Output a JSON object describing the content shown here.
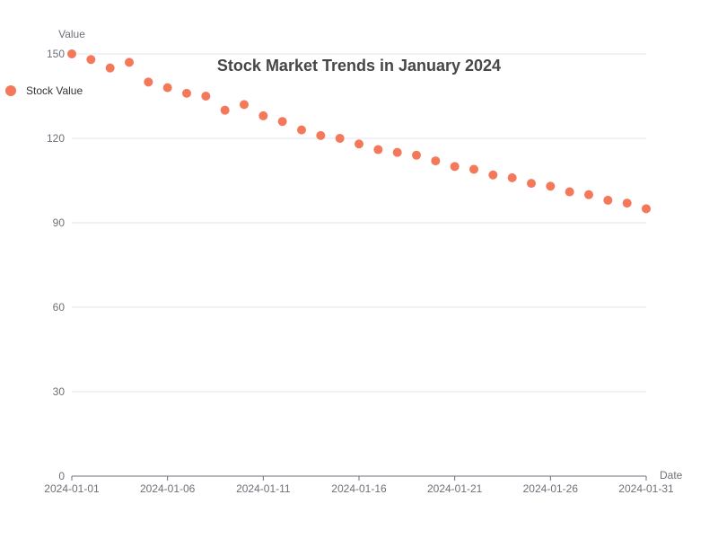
{
  "chart_data": {
    "type": "scatter",
    "title": "Stock Market Trends in January 2024",
    "xlabel": "Date",
    "ylabel": "Value",
    "ylim": [
      0,
      150
    ],
    "y_ticks": [
      0,
      30,
      60,
      90,
      120,
      150
    ],
    "x_tick_labels": [
      "2024-01-01",
      "2024-01-06",
      "2024-01-11",
      "2024-01-16",
      "2024-01-21",
      "2024-01-26",
      "2024-01-31"
    ],
    "xlim": [
      "2024-01-01",
      "2024-01-31"
    ],
    "grid": "horizontal",
    "legend_position": "left",
    "series": [
      {
        "name": "Stock Value",
        "color": "#f4795b",
        "points": [
          {
            "x": "2024-01-01",
            "y": 150
          },
          {
            "x": "2024-01-02",
            "y": 148
          },
          {
            "x": "2024-01-03",
            "y": 145
          },
          {
            "x": "2024-01-04",
            "y": 147
          },
          {
            "x": "2024-01-05",
            "y": 140
          },
          {
            "x": "2024-01-06",
            "y": 138
          },
          {
            "x": "2024-01-07",
            "y": 136
          },
          {
            "x": "2024-01-08",
            "y": 135
          },
          {
            "x": "2024-01-09",
            "y": 130
          },
          {
            "x": "2024-01-10",
            "y": 132
          },
          {
            "x": "2024-01-11",
            "y": 128
          },
          {
            "x": "2024-01-12",
            "y": 126
          },
          {
            "x": "2024-01-13",
            "y": 123
          },
          {
            "x": "2024-01-14",
            "y": 121
          },
          {
            "x": "2024-01-15",
            "y": 120
          },
          {
            "x": "2024-01-16",
            "y": 118
          },
          {
            "x": "2024-01-17",
            "y": 116
          },
          {
            "x": "2024-01-18",
            "y": 115
          },
          {
            "x": "2024-01-19",
            "y": 114
          },
          {
            "x": "2024-01-20",
            "y": 112
          },
          {
            "x": "2024-01-21",
            "y": 110
          },
          {
            "x": "2024-01-22",
            "y": 109
          },
          {
            "x": "2024-01-23",
            "y": 107
          },
          {
            "x": "2024-01-24",
            "y": 106
          },
          {
            "x": "2024-01-25",
            "y": 104
          },
          {
            "x": "2024-01-26",
            "y": 103
          },
          {
            "x": "2024-01-27",
            "y": 101
          },
          {
            "x": "2024-01-28",
            "y": 100
          },
          {
            "x": "2024-01-29",
            "y": 98
          },
          {
            "x": "2024-01-30",
            "y": 97
          },
          {
            "x": "2024-01-31",
            "y": 95
          }
        ]
      }
    ]
  },
  "colors": {
    "axis": "#6e7079",
    "grid": "#e0e6f1",
    "title": "#464646"
  }
}
